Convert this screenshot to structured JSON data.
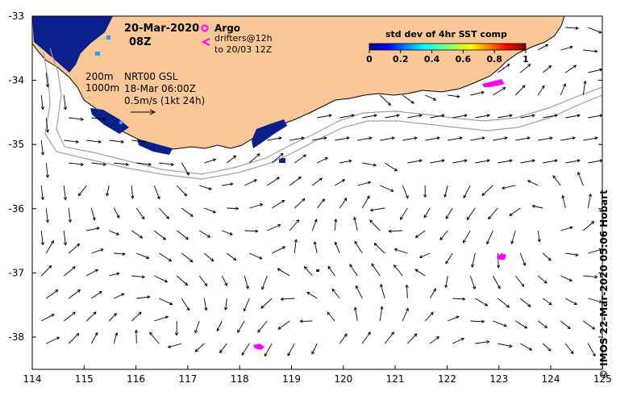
{
  "map": {
    "date": "20-Mar-2020",
    "time": "08Z",
    "argo_label": "Argo",
    "drifters_label": "drifters@12h",
    "drifters_sub": "to 20/03 12Z",
    "isobath_200": "200m",
    "isobath_1000": "1000m",
    "product": "NRT00 GSL",
    "product_date": "18-Mar 06:00Z",
    "scale_label": "0.5m/s (1kt 24h)",
    "credit": "© IMOS 22-Mar-2020 05:06 Hobart",
    "x_ticks": [
      "114",
      "115",
      "116",
      "117",
      "118",
      "119",
      "120",
      "121",
      "122",
      "123",
      "124",
      "125"
    ],
    "y_ticks": [
      "-33",
      "-34",
      "-35",
      "-36",
      "-37",
      "-38"
    ],
    "colorbar": {
      "title": "std dev of 4hr SST comp",
      "ticks": [
        "0",
        "0.2",
        "0.4",
        "0.6",
        "0.8",
        "1"
      ]
    },
    "colors": {
      "land": "#f9c896",
      "sst_low": "#0a1e8c",
      "argo": "#ff00ff",
      "isobath": "#a0a0a0"
    }
  }
}
